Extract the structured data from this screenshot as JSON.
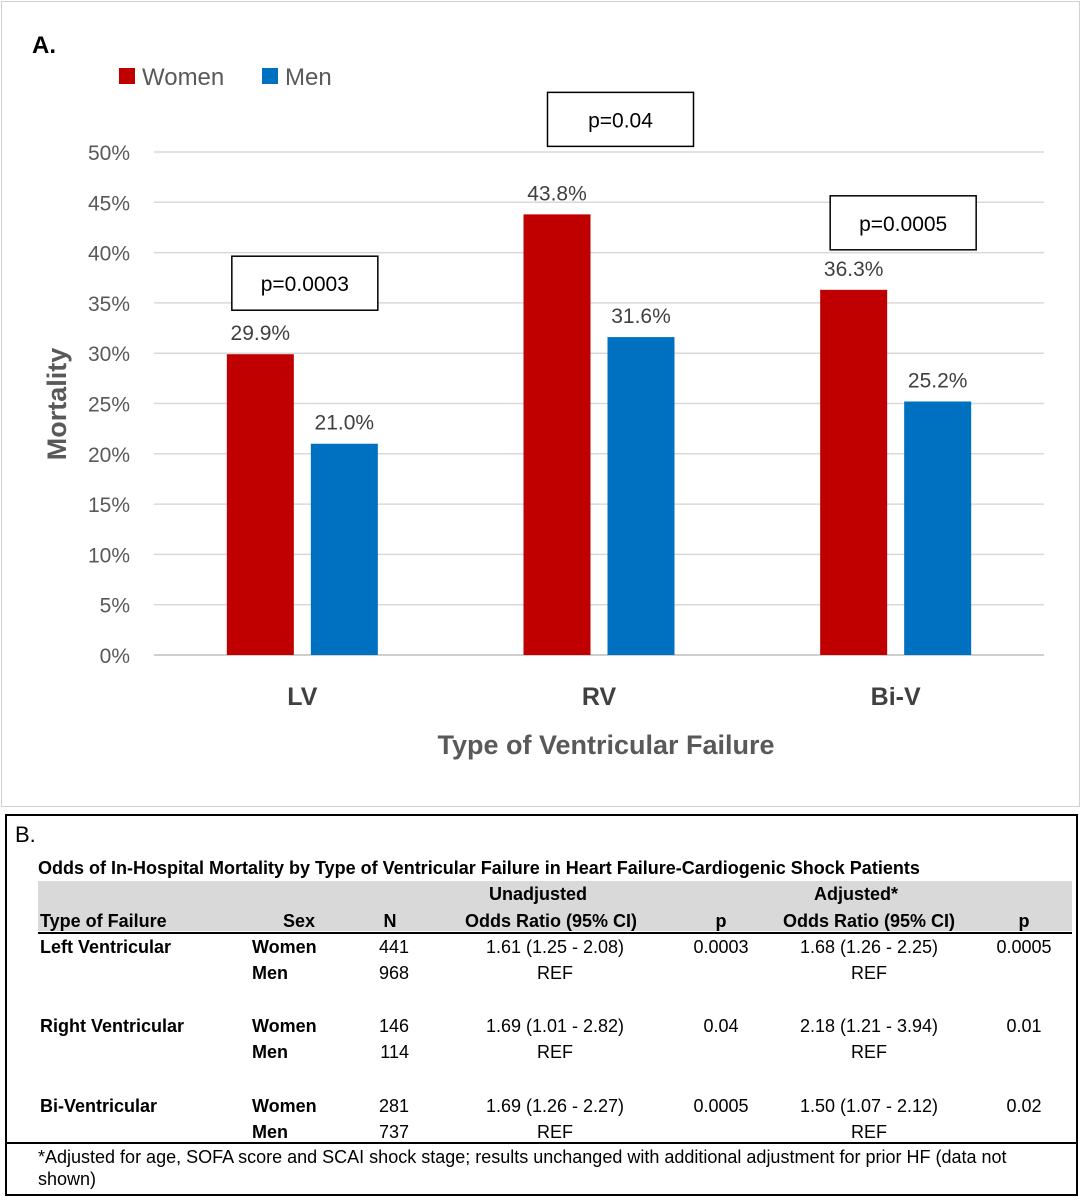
{
  "chart_data": {
    "type": "bar",
    "panel_label": "A.",
    "categories": [
      "LV",
      "RV",
      "Bi-V"
    ],
    "series": [
      {
        "name": "Women",
        "color": "#c00000",
        "values": [
          29.9,
          43.8,
          36.3
        ],
        "labels": [
          "29.9%",
          "43.8%",
          "36.3%"
        ]
      },
      {
        "name": "Men",
        "color": "#0070c0",
        "values": [
          21.0,
          31.6,
          25.2
        ],
        "labels": [
          "21.0%",
          "31.6%",
          "25.2%"
        ]
      }
    ],
    "pvalues": [
      "p=0.0003",
      "p=0.04",
      "p=0.0005"
    ],
    "xlabel": "Type of Ventricular Failure",
    "ylabel": "Mortality",
    "ylim": [
      0,
      50
    ],
    "yticks": [
      "0%",
      "5%",
      "10%",
      "15%",
      "20%",
      "25%",
      "30%",
      "35%",
      "40%",
      "45%",
      "50%"
    ],
    "grid": true,
    "legend_position": "top-left"
  },
  "table": {
    "panel_label": "B.",
    "title": "Odds of In-Hospital Mortality by Type of Ventricular Failure in Heart Failure-Cardiogenic Shock Patients",
    "header_top": {
      "unadjusted": "Unadjusted",
      "adjusted": "Adjusted*"
    },
    "headers": [
      "Type of Failure",
      "Sex",
      "N",
      "Odds Ratio (95% CI)",
      "p",
      "Odds Ratio (95% CI)",
      "p"
    ],
    "groups": [
      {
        "type": "Left Ventricular",
        "women": {
          "sex": "Women",
          "n": "441",
          "or_unadj": "1.61 (1.25 - 2.08)",
          "p_unadj": "0.0003",
          "or_adj": "1.68 (1.26 - 2.25)",
          "p_adj": "0.0005"
        },
        "men": {
          "sex": "Men",
          "n": "968",
          "or_unadj": "REF",
          "or_adj": "REF"
        }
      },
      {
        "type": "Right Ventricular",
        "women": {
          "sex": "Women",
          "n": "146",
          "or_unadj": "1.69 (1.01 - 2.82)",
          "p_unadj": "0.04",
          "or_adj": "2.18 (1.21 - 3.94)",
          "p_adj": "0.01"
        },
        "men": {
          "sex": "Men",
          "n": "114",
          "or_unadj": "REF",
          "or_adj": "REF"
        }
      },
      {
        "type": "Bi-Ventricular",
        "women": {
          "sex": "Women",
          "n": "281",
          "or_unadj": "1.69 (1.26 - 2.27)",
          "p_unadj": "0.0005",
          "or_adj": "1.50 (1.07 - 2.12)",
          "p_adj": "0.02"
        },
        "men": {
          "sex": "Men",
          "n": "737",
          "or_unadj": "REF",
          "or_adj": "REF"
        }
      }
    ],
    "footnote": "*Adjusted for age, SOFA score and SCAI shock stage; results unchanged with additional adjustment for prior HF (data not shown)"
  }
}
